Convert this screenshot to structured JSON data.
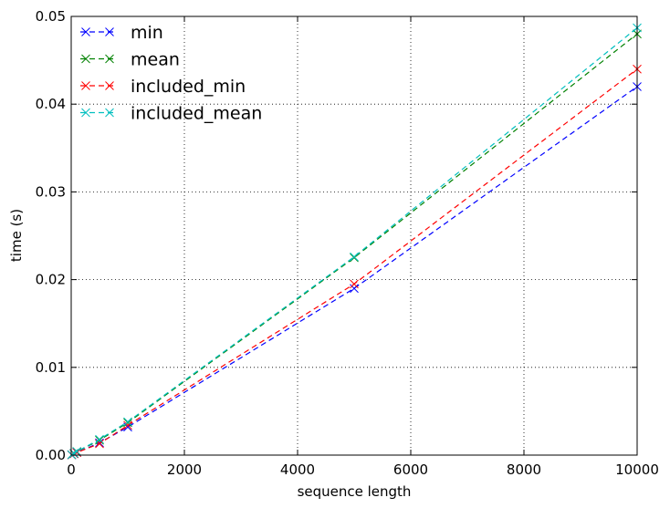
{
  "chart_data": {
    "type": "line",
    "title": "",
    "xlabel": "sequence length",
    "ylabel": "time (s)",
    "xlim": [
      0,
      10000
    ],
    "ylim": [
      0.0,
      0.05
    ],
    "xticks": [
      0,
      2000,
      4000,
      6000,
      8000,
      10000
    ],
    "xtick_labels": [
      "0",
      "2000",
      "4000",
      "6000",
      "8000",
      "10000"
    ],
    "yticks": [
      0.0,
      0.01,
      0.02,
      0.03,
      0.04,
      0.05
    ],
    "ytick_labels": [
      "0.00",
      "0.01",
      "0.02",
      "0.03",
      "0.04",
      "0.05"
    ],
    "grid": true,
    "legend_position": "top-left",
    "x": [
      10,
      50,
      100,
      500,
      1000,
      5000,
      10000
    ],
    "series": [
      {
        "name": "min",
        "color": "#0000ff",
        "line_style": "dashed",
        "marker": "x",
        "values": [
          3e-05,
          0.00015,
          0.0003,
          0.0014,
          0.0032,
          0.019,
          0.042
        ]
      },
      {
        "name": "mean",
        "color": "#008000",
        "line_style": "dashed",
        "marker": "x",
        "values": [
          4e-05,
          0.0002,
          0.0004,
          0.0017,
          0.0037,
          0.0225,
          0.048
        ]
      },
      {
        "name": "included_min",
        "color": "#ff0000",
        "line_style": "dashed",
        "marker": "x",
        "values": [
          3e-05,
          0.00015,
          0.0003,
          0.0013,
          0.0034,
          0.0195,
          0.044
        ]
      },
      {
        "name": "included_mean",
        "color": "#00bfbf",
        "line_style": "dashed",
        "marker": "x",
        "values": [
          4e-05,
          0.0002,
          0.0004,
          0.0018,
          0.0038,
          0.0226,
          0.0487
        ]
      }
    ]
  }
}
